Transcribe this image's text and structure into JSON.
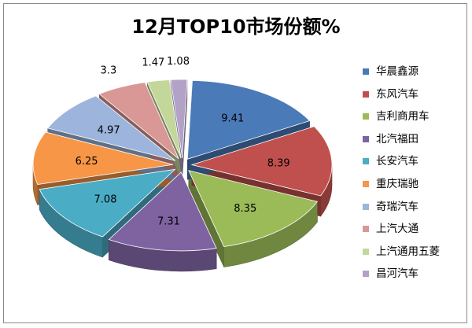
{
  "chart_data": {
    "type": "pie",
    "title": "12月TOP10市场份额%",
    "legend_position": "right",
    "style": "3d-exploded",
    "slices": [
      {
        "name": "华晨鑫源",
        "value": 9.41,
        "color": "#4a7ab8"
      },
      {
        "name": "东风汽车",
        "value": 8.39,
        "color": "#c0504d"
      },
      {
        "name": "吉利商用车",
        "value": 8.35,
        "color": "#9bbb59"
      },
      {
        "name": "北汽福田",
        "value": 7.31,
        "color": "#7f63a1"
      },
      {
        "name": "长安汽车",
        "value": 7.08,
        "color": "#4bacc6"
      },
      {
        "name": "重庆瑞驰",
        "value": 6.25,
        "color": "#f79646"
      },
      {
        "name": "奇瑞汽车",
        "value": 4.97,
        "color": "#9db5dc"
      },
      {
        "name": "上汽大通",
        "value": 3.3,
        "color": "#d99795"
      },
      {
        "name": "上汽通用五菱",
        "value": 1.47,
        "color": "#c4d79b"
      },
      {
        "name": "昌河汽车",
        "value": 1.08,
        "color": "#b3a2c7"
      }
    ]
  }
}
